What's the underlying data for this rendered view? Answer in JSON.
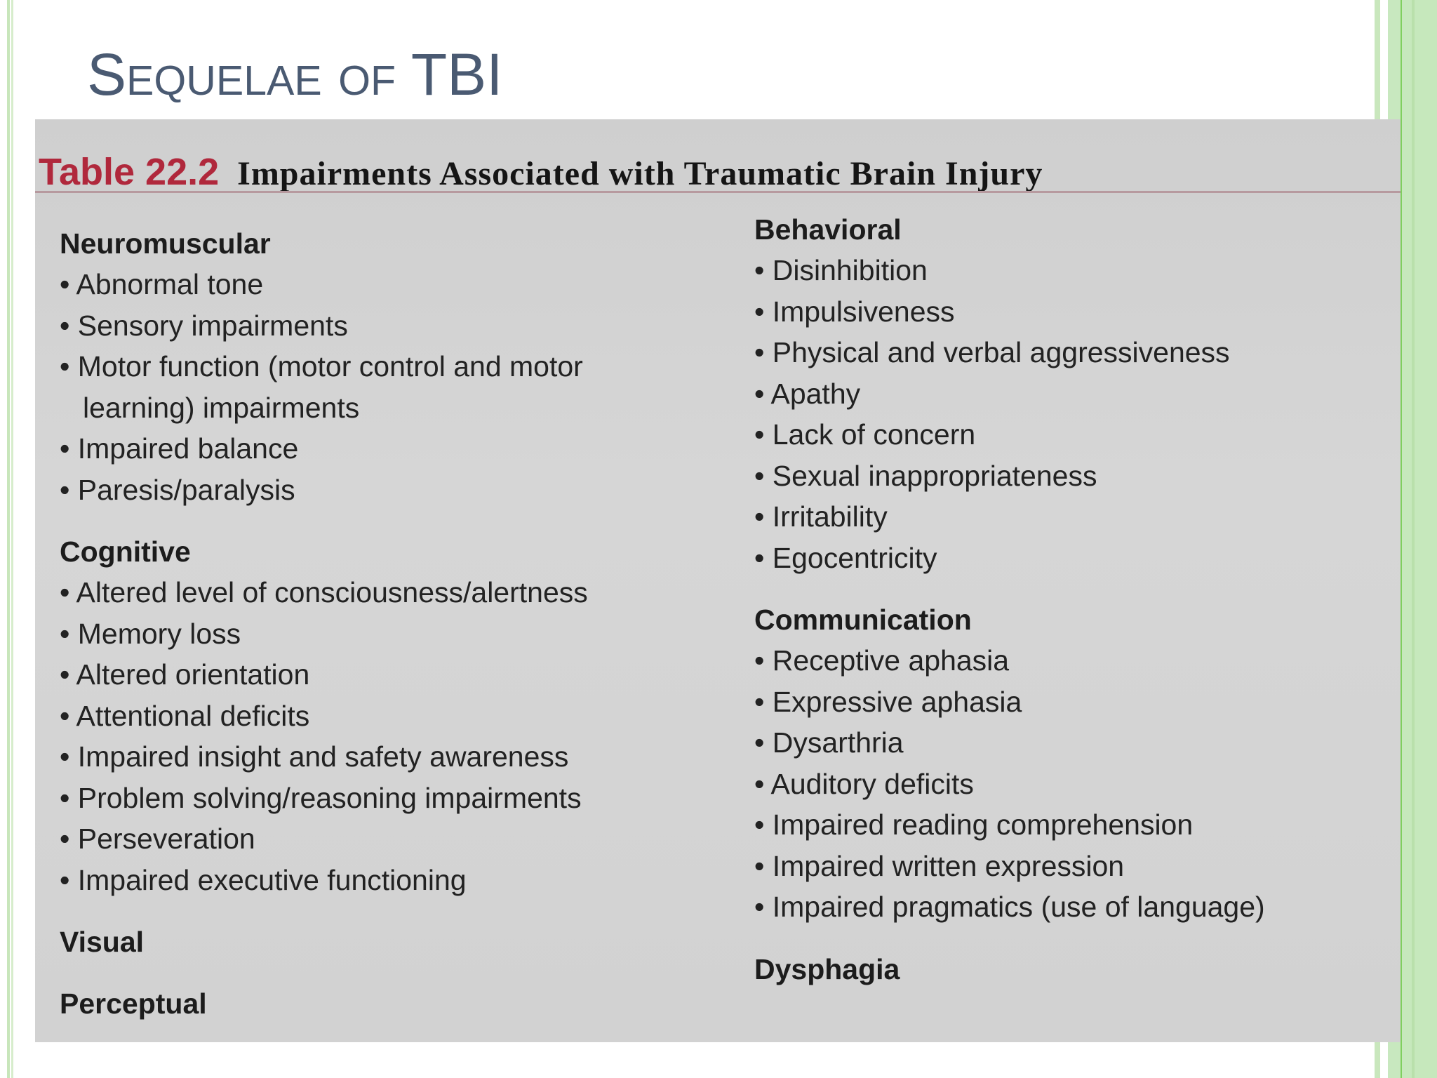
{
  "slide": {
    "title": "Sequelae of TBI"
  },
  "table": {
    "number": "Table 22.2",
    "title": "Impairments Associated with Traumatic Brain Injury",
    "left_sections": [
      {
        "heading": "Neuromuscular",
        "items": [
          "Abnormal tone",
          "Sensory impairments",
          "Motor function (motor control and motor",
          "learning) impairments",
          "Impaired balance",
          "Paresis/paralysis"
        ]
      },
      {
        "heading": "Cognitive",
        "items": [
          "Altered level of consciousness/alertness",
          "Memory loss",
          "Altered orientation",
          "Attentional deficits",
          "Impaired insight and safety awareness",
          "Problem solving/reasoning impairments",
          "Perseveration",
          "Impaired executive functioning"
        ]
      },
      {
        "heading": "Visual",
        "items": []
      },
      {
        "heading": "Perceptual",
        "items": []
      }
    ],
    "right_sections": [
      {
        "heading": "Behavioral",
        "items": [
          "Disinhibition",
          "Impulsiveness",
          "Physical and verbal aggressiveness",
          "Apathy",
          "Lack of concern",
          "Sexual inappropriateness",
          "Irritability",
          "Egocentricity"
        ]
      },
      {
        "heading": "Communication",
        "items": [
          "Receptive aphasia",
          "Expressive aphasia",
          "Dysarthria",
          "Auditory deficits",
          "Impaired reading comprehension",
          "Impaired written expression",
          "Impaired pragmatics (use of language)"
        ]
      },
      {
        "heading": "Dysphagia",
        "items": []
      }
    ]
  },
  "colors": {
    "title": "#4a5a72",
    "table_number": "#b0283c",
    "accent_green": "#c8e6bb"
  }
}
